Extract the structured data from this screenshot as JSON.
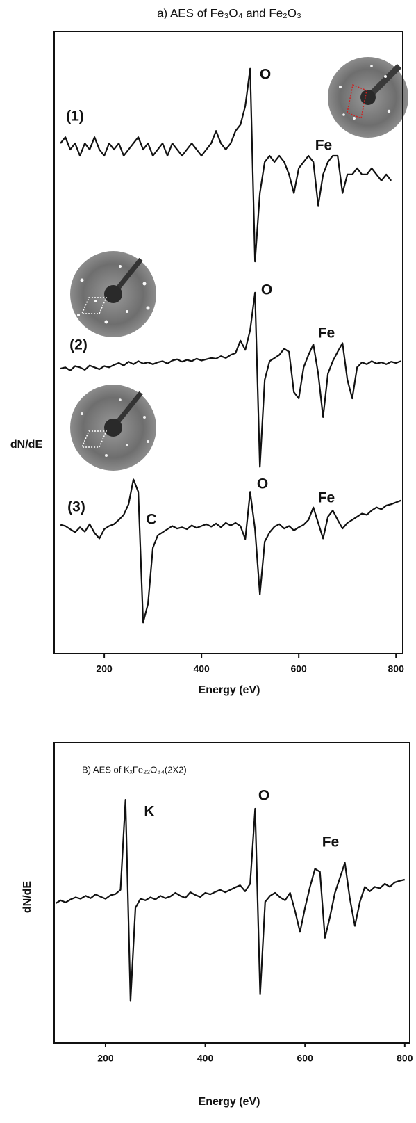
{
  "chart_data": [
    {
      "type": "line",
      "title": "a) AES of Fe₃O₄ and Fe₂O₃",
      "xlabel": "Energy (eV)",
      "ylabel": "dN/dE",
      "xlim": [
        97,
        814
      ],
      "ylim": [
        0,
        100
      ],
      "xticks": [
        200,
        400,
        600,
        800
      ],
      "x": [
        110,
        120,
        130,
        140,
        150,
        160,
        170,
        180,
        190,
        200,
        210,
        220,
        230,
        240,
        250,
        260,
        270,
        280,
        290,
        300,
        310,
        320,
        330,
        340,
        350,
        360,
        370,
        380,
        390,
        400,
        410,
        420,
        430,
        440,
        450,
        460,
        470,
        480,
        490,
        500,
        510,
        520,
        530,
        540,
        550,
        560,
        570,
        580,
        590,
        600,
        610,
        620,
        630,
        640,
        650,
        660,
        670,
        680,
        690,
        700,
        710,
        720,
        730,
        740,
        750,
        760,
        770,
        780,
        790,
        800,
        810
      ],
      "series": [
        {
          "name": "(1)",
          "color": "#111111",
          "values": [
            82,
            83,
            81,
            82,
            80,
            82,
            81,
            83,
            81,
            80,
            82,
            81,
            82,
            80,
            81,
            82,
            83,
            81,
            82,
            80,
            81,
            82,
            80,
            82,
            81,
            80,
            81,
            82,
            81,
            80,
            81,
            82,
            84,
            82,
            81,
            82,
            84,
            85,
            88,
            94,
            63,
            74,
            79,
            80,
            79,
            80,
            79,
            77,
            74,
            78,
            79,
            80,
            79,
            72,
            77,
            79,
            80,
            80,
            74,
            77,
            77,
            78,
            77,
            77,
            78,
            77,
            76,
            77,
            76,
            null,
            null
          ]
        },
        {
          "name": "(2)",
          "color": "#111111",
          "values": [
            45.8,
            46,
            45.5,
            46.2,
            46,
            45.6,
            46.3,
            46,
            45.7,
            46.2,
            46,
            46.4,
            46.7,
            46.3,
            46.9,
            46.5,
            47,
            46.6,
            46.8,
            46.5,
            46.8,
            47,
            46.6,
            47.1,
            47.3,
            46.9,
            47.2,
            47,
            47.4,
            47.1,
            47.3,
            47.5,
            47.4,
            47.8,
            47.5,
            48,
            48.3,
            50.3,
            48.8,
            52,
            58,
            30,
            44,
            47,
            47.5,
            48,
            49,
            48.5,
            42,
            41,
            46,
            48,
            49.7,
            45,
            38,
            45,
            47,
            48.5,
            49.9,
            44,
            41,
            46,
            46.8,
            46.5,
            47,
            46.6,
            46.8,
            46.5,
            46.9,
            46.7,
            47
          ]
        },
        {
          "name": "(3)",
          "color": "#111111",
          "values": [
            20.7,
            20.5,
            20,
            19.5,
            20.3,
            19.6,
            20.8,
            19.4,
            18.5,
            20,
            20.5,
            20.8,
            21.5,
            22.3,
            24,
            28,
            26,
            5,
            8,
            17,
            19,
            19.5,
            20,
            20.5,
            20.1,
            20.3,
            20,
            20.6,
            20.2,
            20.5,
            20.8,
            20.4,
            20.9,
            20.3,
            21,
            20.6,
            21,
            20.5,
            18.4,
            26,
            20,
            9.5,
            18,
            19.5,
            20.4,
            20.8,
            20.1,
            20.5,
            19.8,
            20.3,
            20.7,
            21.5,
            23.5,
            21,
            18.5,
            22,
            23,
            21.5,
            20.1,
            21,
            21.5,
            22,
            22.5,
            22.3,
            23,
            23.5,
            23.2,
            23.8,
            24,
            24.3,
            24.6
          ]
        }
      ],
      "annotations": [
        "O",
        "Fe",
        "O",
        "Fe",
        "C",
        "O",
        "Fe"
      ]
    },
    {
      "type": "line",
      "title": "B) AES of KₓFe₂₂O₃₄(2X2)",
      "xlabel": "Energy (eV)",
      "ylabel": "dN/dE",
      "xlim": [
        97,
        810
      ],
      "ylim": [
        0,
        100
      ],
      "xticks": [
        200,
        400,
        600,
        800
      ],
      "x": [
        100,
        110,
        120,
        130,
        140,
        150,
        160,
        170,
        180,
        190,
        200,
        210,
        220,
        230,
        240,
        250,
        260,
        270,
        280,
        290,
        300,
        310,
        320,
        330,
        340,
        350,
        360,
        370,
        380,
        390,
        400,
        410,
        420,
        430,
        440,
        450,
        460,
        470,
        480,
        490,
        500,
        510,
        520,
        530,
        540,
        550,
        560,
        570,
        580,
        590,
        600,
        610,
        620,
        630,
        640,
        650,
        660,
        670,
        680,
        690,
        700,
        710,
        720,
        730,
        740,
        750,
        760,
        770,
        780,
        790,
        800
      ],
      "series": [
        {
          "color": "#111111",
          "values": [
            46.5,
            47.5,
            46.8,
            47.8,
            48.5,
            48,
            49,
            48.2,
            49.5,
            48.7,
            48,
            49.2,
            49.6,
            51,
            81,
            14,
            45,
            48,
            47.5,
            48.5,
            47.8,
            49,
            48.2,
            48.8,
            50,
            49,
            48.3,
            50.2,
            49.3,
            48.6,
            50,
            49.5,
            50.3,
            51,
            50.2,
            51,
            51.8,
            52.5,
            50.5,
            53,
            78,
            16.2,
            47,
            49,
            50,
            48.5,
            47.5,
            50,
            44,
            37,
            45,
            52,
            58,
            57,
            35,
            42,
            50,
            55,
            60,
            48,
            39,
            47,
            52,
            50.5,
            52,
            51.5,
            53,
            52,
            53.5,
            54,
            54.4
          ]
        }
      ],
      "annotations": [
        "K",
        "O",
        "Fe"
      ]
    }
  ]
}
